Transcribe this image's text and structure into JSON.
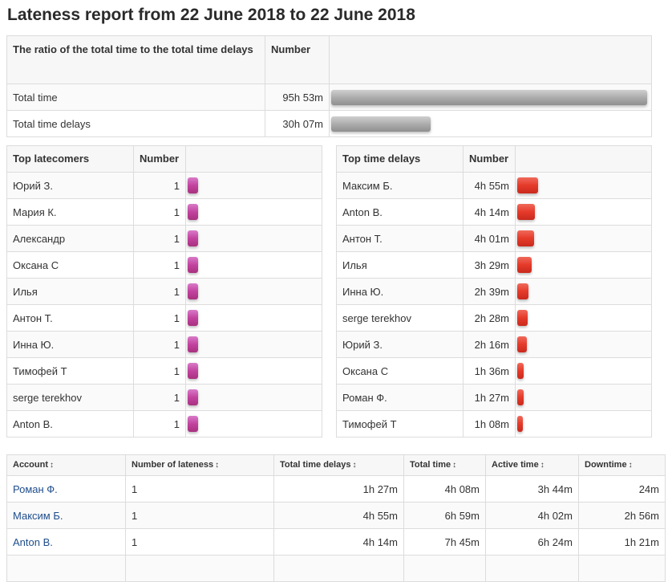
{
  "page": {
    "title": "Lateness report from 22 June 2018 to 22 June 2018"
  },
  "ratio_table": {
    "headers": [
      "The ratio of the total time to the total time delays",
      "Number"
    ],
    "rows": [
      {
        "label": "Total time",
        "value": "95h 53m",
        "bar_fraction": 1.0
      },
      {
        "label": "Total time delays",
        "value": "30h 07m",
        "bar_fraction": 0.314
      }
    ],
    "bar_color": "#a9a9a9"
  },
  "top_latecomers": {
    "headers": [
      "Top latecomers",
      "Number"
    ],
    "bar_color": "#c2439f",
    "rows": [
      {
        "name": "Юрий З.",
        "value": "1"
      },
      {
        "name": "Мария К.",
        "value": "1"
      },
      {
        "name": "Александр",
        "value": "1"
      },
      {
        "name": "Оксана С",
        "value": "1"
      },
      {
        "name": "Илья",
        "value": "1"
      },
      {
        "name": "Антон Т.",
        "value": "1"
      },
      {
        "name": "Инна Ю.",
        "value": "1"
      },
      {
        "name": "Тимофей Т",
        "value": "1"
      },
      {
        "name": "serge terekhov",
        "value": "1"
      },
      {
        "name": "Anton B.",
        "value": "1"
      }
    ]
  },
  "top_time_delays": {
    "headers": [
      "Top time delays",
      "Number"
    ],
    "bar_color": "#e53a2a",
    "rows": [
      {
        "name": "Максим Б.",
        "value": "4h 55m",
        "minutes": 295
      },
      {
        "name": "Anton B.",
        "value": "4h 14m",
        "minutes": 254
      },
      {
        "name": "Антон Т.",
        "value": "4h 01m",
        "minutes": 241
      },
      {
        "name": "Илья",
        "value": "3h 29m",
        "minutes": 209
      },
      {
        "name": "Инна Ю.",
        "value": "2h 39m",
        "minutes": 159
      },
      {
        "name": "serge terekhov",
        "value": "2h 28m",
        "minutes": 148
      },
      {
        "name": "Юрий З.",
        "value": "2h 16m",
        "minutes": 136
      },
      {
        "name": "Оксана С",
        "value": "1h 36m",
        "minutes": 96
      },
      {
        "name": "Роман Ф.",
        "value": "1h 27m",
        "minutes": 87
      },
      {
        "name": "Тимофей Т",
        "value": "1h 08m",
        "minutes": 68
      }
    ]
  },
  "accounts_table": {
    "headers": [
      "Account",
      "Number of lateness",
      "Total time delays",
      "Total time",
      "Active time",
      "Downtime"
    ],
    "sort_icon": "sort-arrows-icon",
    "rows": [
      {
        "account": "Роман Ф.",
        "lateness": "1",
        "delays": "1h 27m",
        "total": "4h 08m",
        "active": "3h 44m",
        "downtime": "24m"
      },
      {
        "account": "Максим Б.",
        "lateness": "1",
        "delays": "4h 55m",
        "total": "6h 59m",
        "active": "4h 02m",
        "downtime": "2h 56m"
      },
      {
        "account": "Anton B.",
        "lateness": "1",
        "delays": "4h 14m",
        "total": "7h 45m",
        "active": "6h 24m",
        "downtime": "1h 21m"
      }
    ]
  }
}
